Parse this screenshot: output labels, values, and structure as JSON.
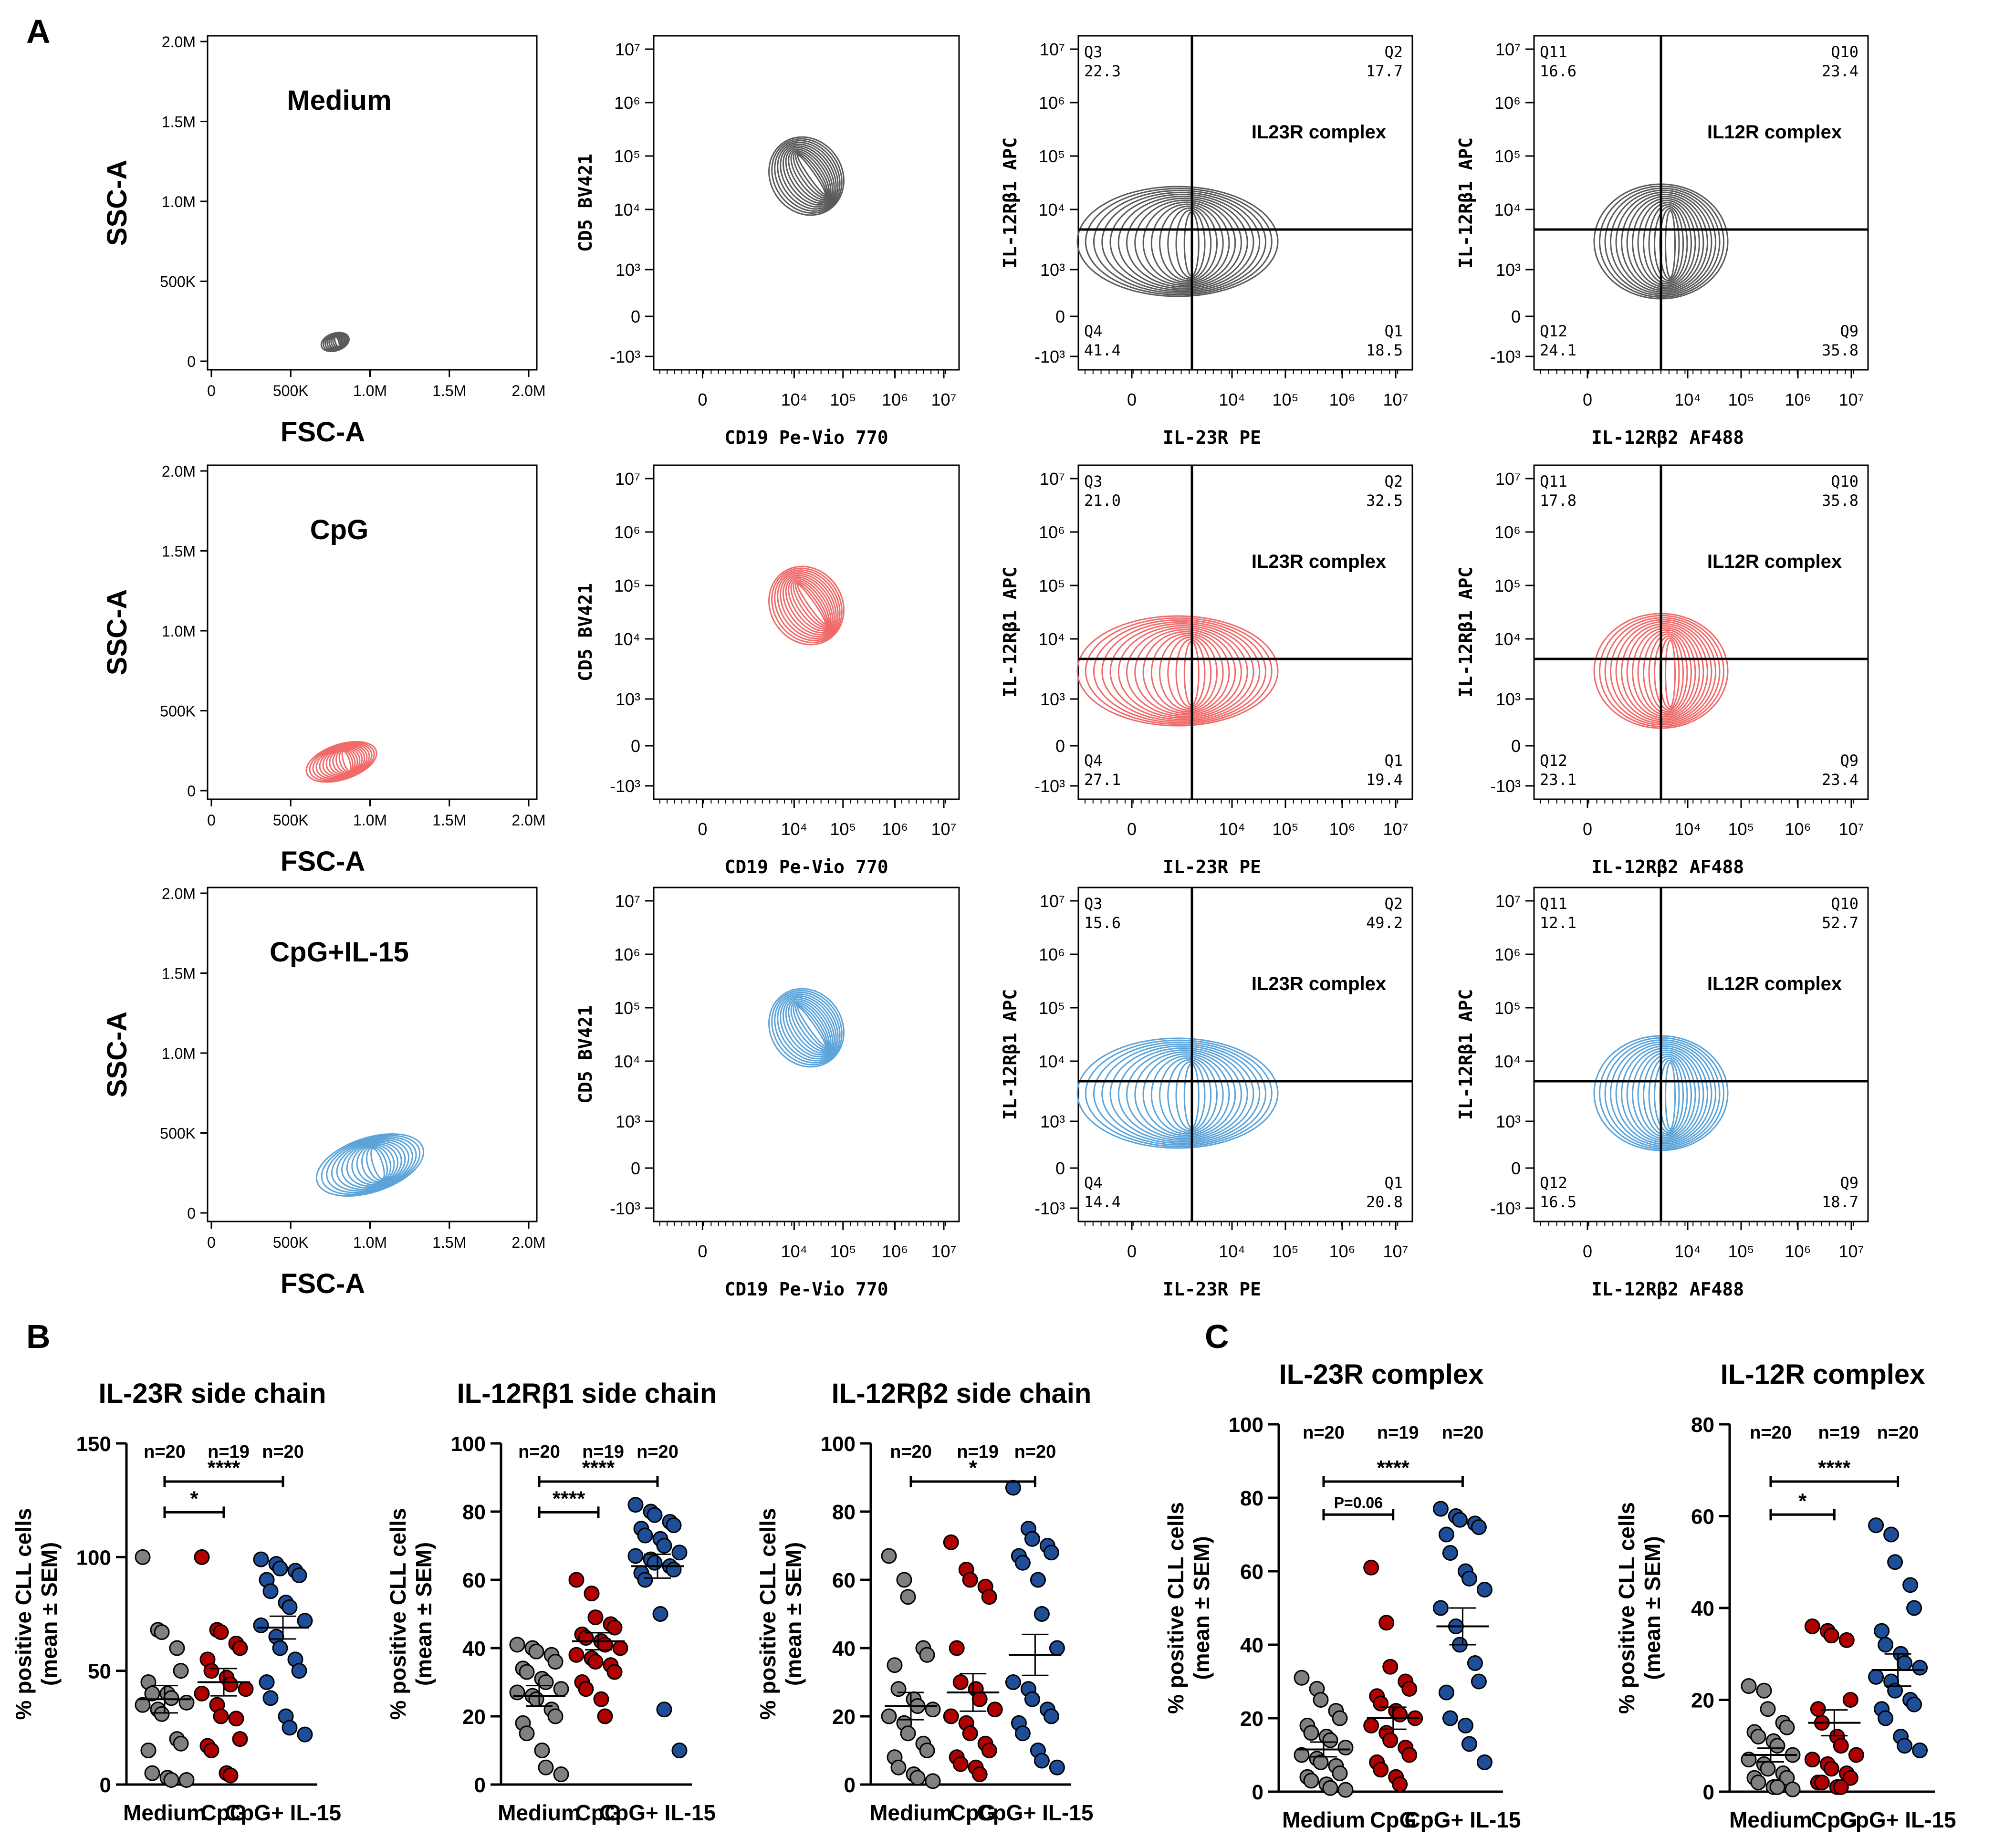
{
  "panel_letters": {
    "a": "A",
    "b": "B",
    "c": "C"
  },
  "colors": {
    "medium": "#808080",
    "cpg": "#b00000",
    "il15": "#1f4e99",
    "contour_medium": "#5a5a5a",
    "contour_cpg": "#f06a6a",
    "contour_il15": "#5ba3d9"
  },
  "flow": {
    "rows": [
      {
        "condition": "Medium",
        "contour_color": "#5a5a5a",
        "scatter": {
          "x_label": "FSC-A",
          "y_label": "SSC-A",
          "x_ticks": [
            "0",
            "500K",
            "1.0M",
            "1.5M",
            "2.0M"
          ],
          "y_ticks": [
            "0",
            "500K",
            "1.0M",
            "1.5M",
            "2.0M"
          ],
          "center": [
            780000,
            120000
          ],
          "spread": [
            90000,
            55000
          ]
        },
        "cd5cd19": {
          "x_label": "CD19 Pe-Vio 770",
          "y_label": "CD5 BV421"
        },
        "il23r": {
          "title": "IL23R complex",
          "x_label": "IL-23R PE",
          "y_label": "IL-12Rβ1 APC",
          "quadrants": [
            {
              "name": "Q3",
              "value": "22.3"
            },
            {
              "name": "Q2",
              "value": "17.7"
            },
            {
              "name": "Q4",
              "value": "41.4"
            },
            {
              "name": "Q1",
              "value": "18.5"
            }
          ]
        },
        "il12r": {
          "title": "IL12R complex",
          "x_label": "IL-12Rβ2 AF488",
          "y_label": "IL-12Rβ1 APC",
          "quadrants": [
            {
              "name": "Q11",
              "value": "16.6"
            },
            {
              "name": "Q10",
              "value": "23.4"
            },
            {
              "name": "Q12",
              "value": "24.1"
            },
            {
              "name": "Q9",
              "value": "35.8"
            }
          ]
        }
      },
      {
        "condition": "CpG",
        "contour_color": "#f06a6a",
        "scatter": {
          "x_label": "FSC-A",
          "y_label": "SSC-A",
          "x_ticks": [
            "0",
            "500K",
            "1.0M",
            "1.5M",
            "2.0M"
          ],
          "y_ticks": [
            "0",
            "500K",
            "1.0M",
            "1.5M",
            "2.0M"
          ],
          "center": [
            820000,
            180000
          ],
          "spread": [
            230000,
            110000
          ]
        },
        "cd5cd19": {
          "x_label": "CD19 Pe-Vio 770",
          "y_label": "CD5 BV421"
        },
        "il23r": {
          "title": "IL23R complex",
          "x_label": "IL-23R PE",
          "y_label": "IL-12Rβ1 APC",
          "quadrants": [
            {
              "name": "Q3",
              "value": "21.0"
            },
            {
              "name": "Q2",
              "value": "32.5"
            },
            {
              "name": "Q4",
              "value": "27.1"
            },
            {
              "name": "Q1",
              "value": "19.4"
            }
          ]
        },
        "il12r": {
          "title": "IL12R complex",
          "x_label": "IL-12Rβ2 AF488",
          "y_label": "IL-12Rβ1 APC",
          "quadrants": [
            {
              "name": "Q11",
              "value": "17.8"
            },
            {
              "name": "Q10",
              "value": "35.8"
            },
            {
              "name": "Q12",
              "value": "23.1"
            },
            {
              "name": "Q9",
              "value": "23.4"
            }
          ]
        }
      },
      {
        "condition": "CpG+IL-15",
        "contour_color": "#5ba3d9",
        "scatter": {
          "x_label": "FSC-A",
          "y_label": "SSC-A",
          "x_ticks": [
            "0",
            "500K",
            "1.0M",
            "1.5M",
            "2.0M"
          ],
          "y_ticks": [
            "0",
            "500K",
            "1.0M",
            "1.5M",
            "2.0M"
          ],
          "center": [
            1000000,
            300000
          ],
          "spread": [
            350000,
            170000
          ]
        },
        "cd5cd19": {
          "x_label": "CD19 Pe-Vio 770",
          "y_label": "CD5 BV421"
        },
        "il23r": {
          "title": "IL23R complex",
          "x_label": "IL-23R PE",
          "y_label": "IL-12Rβ1 APC",
          "quadrants": [
            {
              "name": "Q3",
              "value": "15.6"
            },
            {
              "name": "Q2",
              "value": "49.2"
            },
            {
              "name": "Q4",
              "value": "14.4"
            },
            {
              "name": "Q1",
              "value": "20.8"
            }
          ]
        },
        "il12r": {
          "title": "IL12R complex",
          "x_label": "IL-12Rβ2 AF488",
          "y_label": "IL-12Rβ1 APC",
          "quadrants": [
            {
              "name": "Q11",
              "value": "12.1"
            },
            {
              "name": "Q10",
              "value": "52.7"
            },
            {
              "name": "Q12",
              "value": "16.5"
            },
            {
              "name": "Q9",
              "value": "18.7"
            }
          ]
        }
      }
    ],
    "log_axis": {
      "x_ticks": [
        "0",
        "10⁴",
        "10⁵",
        "10⁶",
        "10⁷"
      ],
      "y_ticks": [
        "10⁷",
        "10⁶",
        "10⁵",
        "10⁴",
        "10³",
        "0",
        "-10³"
      ]
    }
  },
  "chart_data": [
    {
      "type": "scatter",
      "title": "IL-23R side chain",
      "ylabel": "% positive CLL cells\n(mean ± SEM)",
      "categories": [
        "Medium",
        "CpG",
        "CpG+ IL-15"
      ],
      "ylim": [
        0,
        150
      ],
      "yticks": [
        0,
        50,
        100,
        150
      ],
      "counts": [
        "n=20",
        "n=19",
        "n=20"
      ],
      "series": [
        {
          "values": [
            100,
            68,
            67,
            60,
            50,
            45,
            40,
            40,
            38,
            36,
            35,
            33,
            31,
            20,
            18,
            15,
            5,
            3,
            2,
            2
          ],
          "mean": 37.5,
          "sem": 6
        },
        {
          "values": [
            100,
            68,
            67,
            62,
            60,
            55,
            50,
            47,
            44,
            42,
            40,
            35,
            30,
            29,
            20,
            17,
            15,
            5,
            4
          ],
          "mean": 45,
          "sem": 6
        },
        {
          "values": [
            99,
            97,
            95,
            94,
            92,
            90,
            85,
            80,
            78,
            72,
            70,
            65,
            60,
            55,
            50,
            45,
            38,
            30,
            25,
            22
          ],
          "mean": 69,
          "sem": 5
        }
      ],
      "significance": [
        {
          "from": 0,
          "to": 1,
          "label": "*"
        },
        {
          "from": 0,
          "to": 2,
          "label": "****"
        }
      ]
    },
    {
      "type": "scatter",
      "title": "IL-12Rβ1 side chain",
      "ylabel": "% positive CLL cells\n(mean ± SEM)",
      "categories": [
        "Medium",
        "CpG",
        "CpG+ IL-15"
      ],
      "ylim": [
        0,
        100
      ],
      "yticks": [
        0,
        20,
        40,
        60,
        80,
        100
      ],
      "counts": [
        "n=20",
        "n=19",
        "n=20"
      ],
      "series": [
        {
          "values": [
            41,
            40,
            39,
            38,
            36,
            34,
            33,
            31,
            30,
            28,
            27,
            26,
            25,
            22,
            20,
            18,
            15,
            10,
            5,
            3
          ],
          "mean": 26,
          "sem": 3
        },
        {
          "values": [
            60,
            56,
            49,
            47,
            46,
            44,
            43,
            42,
            41,
            40,
            38,
            37,
            36,
            35,
            33,
            30,
            28,
            25,
            20
          ],
          "mean": 42,
          "sem": 2.5
        },
        {
          "values": [
            82,
            80,
            79,
            77,
            76,
            75,
            73,
            72,
            70,
            68,
            67,
            66,
            65,
            64,
            63,
            62,
            60,
            50,
            22,
            10
          ],
          "mean": 64,
          "sem": 3.5
        }
      ],
      "significance": [
        {
          "from": 0,
          "to": 1,
          "label": "****"
        },
        {
          "from": 0,
          "to": 2,
          "label": "****"
        }
      ]
    },
    {
      "type": "scatter",
      "title": "IL-12Rβ2 side chain",
      "ylabel": "% positive CLL cells\n(mean ± SEM)",
      "categories": [
        "Medium",
        "CpG",
        "CpG+ IL-15"
      ],
      "ylim": [
        0,
        100
      ],
      "yticks": [
        0,
        20,
        40,
        60,
        80,
        100
      ],
      "counts": [
        "n=20",
        "n=19",
        "n=20"
      ],
      "series": [
        {
          "values": [
            67,
            60,
            55,
            40,
            38,
            35,
            28,
            25,
            23,
            22,
            20,
            18,
            15,
            12,
            10,
            8,
            5,
            3,
            2,
            1
          ],
          "mean": 23,
          "sem": 4
        },
        {
          "values": [
            71,
            63,
            60,
            58,
            55,
            40,
            30,
            28,
            25,
            22,
            20,
            18,
            15,
            12,
            10,
            8,
            6,
            5,
            3
          ],
          "mean": 27,
          "sem": 5.5
        },
        {
          "values": [
            87,
            75,
            72,
            70,
            68,
            67,
            65,
            60,
            50,
            40,
            30,
            28,
            25,
            22,
            20,
            18,
            15,
            10,
            7,
            5
          ],
          "mean": 38,
          "sem": 6
        }
      ],
      "significance": [
        {
          "from": 0,
          "to": 2,
          "label": "*"
        }
      ]
    },
    {
      "type": "scatter",
      "title": "IL-23R complex",
      "ylabel": "% positive CLL cells\n(mean ± SEM)",
      "categories": [
        "Medium",
        "CpG",
        "CpG+ IL-15"
      ],
      "ylim": [
        0,
        100
      ],
      "yticks": [
        0,
        20,
        40,
        60,
        80,
        100
      ],
      "counts": [
        "n=20",
        "n=19",
        "n=20"
      ],
      "series": [
        {
          "values": [
            31,
            28,
            25,
            22,
            20,
            18,
            16,
            15,
            14,
            12,
            10,
            9,
            8,
            7,
            5,
            4,
            3,
            2,
            1,
            0.5
          ],
          "mean": 11.5,
          "sem": 2
        },
        {
          "values": [
            61,
            46,
            34,
            30,
            28,
            26,
            24,
            22,
            21,
            20,
            18,
            16,
            14,
            12,
            10,
            8,
            6,
            4,
            2
          ],
          "mean": 20,
          "sem": 3
        },
        {
          "values": [
            77,
            75,
            74,
            73,
            72,
            70,
            65,
            60,
            58,
            55,
            50,
            45,
            40,
            35,
            30,
            27,
            20,
            18,
            13,
            8
          ],
          "mean": 45,
          "sem": 5
        }
      ],
      "significance": [
        {
          "from": 0,
          "to": 1,
          "label": "P=0.06"
        },
        {
          "from": 0,
          "to": 2,
          "label": "****"
        }
      ]
    },
    {
      "type": "scatter",
      "title": "IL-12R complex",
      "ylabel": "% positive CLL cells\n(mean ± SEM)",
      "categories": [
        "Medium",
        "CpG",
        "CpG+ IL-15"
      ],
      "ylim": [
        0,
        80
      ],
      "yticks": [
        0,
        20,
        40,
        60,
        80
      ],
      "counts": [
        "n=20",
        "n=19",
        "n=20"
      ],
      "series": [
        {
          "values": [
            23,
            22,
            18,
            15,
            14,
            13,
            12,
            11,
            10,
            8,
            7,
            6,
            5,
            4,
            3,
            3,
            2,
            1,
            1,
            0.5
          ],
          "mean": 8,
          "sem": 1.5
        },
        {
          "values": [
            36,
            35,
            34,
            33,
            20,
            18,
            15,
            12,
            10,
            8,
            7,
            6,
            5,
            4,
            3,
            2,
            2,
            1,
            1
          ],
          "mean": 15,
          "sem": 2.8
        },
        {
          "values": [
            58,
            56,
            50,
            45,
            40,
            35,
            32,
            30,
            28,
            27,
            25,
            24,
            22,
            20,
            19,
            18,
            16,
            12,
            10,
            9
          ],
          "mean": 26.5,
          "sem": 3.5
        }
      ],
      "significance": [
        {
          "from": 0,
          "to": 1,
          "label": "*"
        },
        {
          "from": 0,
          "to": 2,
          "label": "****"
        }
      ]
    }
  ]
}
